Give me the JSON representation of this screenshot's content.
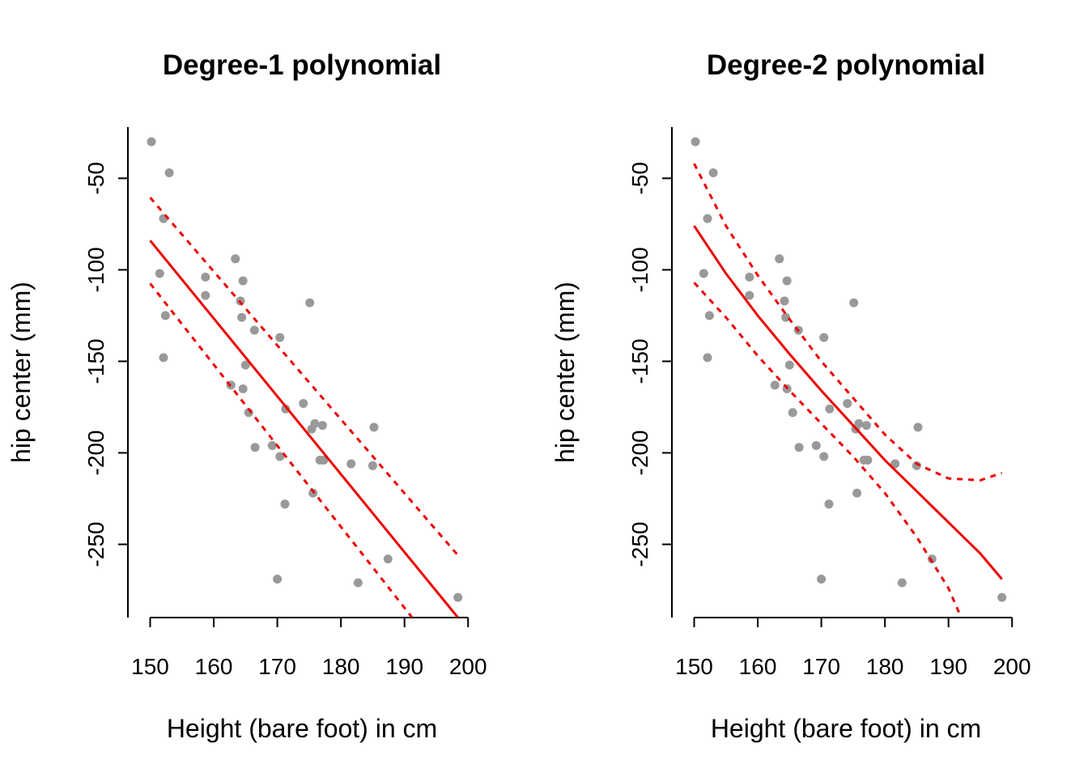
{
  "colors": {
    "points": "#999999",
    "fit": "#ee0000",
    "axis": "#000000",
    "background": "#ffffff"
  },
  "chart_data": [
    {
      "type": "scatter",
      "title": "Degree-1 polynomial",
      "xlabel": "Height (bare foot) in cm",
      "ylabel": "hip center (mm)",
      "xlim": [
        146.5,
        201.5
      ],
      "ylim": [
        -290,
        -22
      ],
      "xticks": [
        150,
        160,
        170,
        180,
        190,
        200
      ],
      "yticks": [
        -50,
        -100,
        -150,
        -200,
        -250
      ],
      "grid": false,
      "points": [
        [
          150.2,
          -30
        ],
        [
          153,
          -47
        ],
        [
          152.1,
          -72
        ],
        [
          151.5,
          -102
        ],
        [
          152.4,
          -125
        ],
        [
          152.1,
          -148
        ],
        [
          158.7,
          -104
        ],
        [
          158.7,
          -114
        ],
        [
          163.4,
          -94
        ],
        [
          164.2,
          -117
        ],
        [
          164.6,
          -106
        ],
        [
          164.4,
          -126
        ],
        [
          166.4,
          -133
        ],
        [
          170.4,
          -137
        ],
        [
          164.6,
          -165
        ],
        [
          165,
          -152
        ],
        [
          162.7,
          -163
        ],
        [
          165.5,
          -178
        ],
        [
          166.5,
          -197
        ],
        [
          169.2,
          -196
        ],
        [
          170.4,
          -202
        ],
        [
          171.2,
          -228
        ],
        [
          171.3,
          -176
        ],
        [
          174.1,
          -173
        ],
        [
          175.1,
          -118
        ],
        [
          175.4,
          -187
        ],
        [
          175.9,
          -184
        ],
        [
          176.7,
          -204
        ],
        [
          177.1,
          -185
        ],
        [
          177.3,
          -204
        ],
        [
          175.6,
          -222
        ],
        [
          181.6,
          -206
        ],
        [
          185,
          -207
        ],
        [
          185.2,
          -186
        ],
        [
          187.4,
          -258
        ],
        [
          182.7,
          -271
        ],
        [
          170,
          -269
        ],
        [
          198.4,
          -279
        ]
      ],
      "series": [
        {
          "name": "fit",
          "style": "solid",
          "x": [
            150,
            198.4
          ],
          "y": [
            -84,
            -290
          ]
        },
        {
          "name": "upper",
          "style": "dashed",
          "x": [
            150,
            198.4
          ],
          "y": [
            -60.5,
            -256
          ]
        },
        {
          "name": "lower",
          "style": "dashed",
          "x": [
            150,
            191.2
          ],
          "y": [
            -107.5,
            -290
          ]
        }
      ]
    },
    {
      "type": "scatter",
      "title": "Degree-2 polynomial",
      "xlabel": "Height (bare foot) in cm",
      "ylabel": "hip center (mm)",
      "xlim": [
        146.5,
        201.5
      ],
      "ylim": [
        -290,
        -22
      ],
      "xticks": [
        150,
        160,
        170,
        180,
        190,
        200
      ],
      "yticks": [
        -50,
        -100,
        -150,
        -200,
        -250
      ],
      "grid": false,
      "points": [
        [
          150.2,
          -30
        ],
        [
          153,
          -47
        ],
        [
          152.1,
          -72
        ],
        [
          151.5,
          -102
        ],
        [
          152.4,
          -125
        ],
        [
          152.1,
          -148
        ],
        [
          158.7,
          -104
        ],
        [
          158.7,
          -114
        ],
        [
          163.4,
          -94
        ],
        [
          164.2,
          -117
        ],
        [
          164.6,
          -106
        ],
        [
          164.4,
          -126
        ],
        [
          166.4,
          -133
        ],
        [
          170.4,
          -137
        ],
        [
          164.6,
          -165
        ],
        [
          165,
          -152
        ],
        [
          162.7,
          -163
        ],
        [
          165.5,
          -178
        ],
        [
          166.5,
          -197
        ],
        [
          169.2,
          -196
        ],
        [
          170.4,
          -202
        ],
        [
          171.2,
          -228
        ],
        [
          171.3,
          -176
        ],
        [
          174.1,
          -173
        ],
        [
          175.1,
          -118
        ],
        [
          175.4,
          -187
        ],
        [
          175.9,
          -184
        ],
        [
          176.7,
          -204
        ],
        [
          177.1,
          -185
        ],
        [
          177.3,
          -204
        ],
        [
          175.6,
          -222
        ],
        [
          181.6,
          -206
        ],
        [
          185,
          -207
        ],
        [
          185.2,
          -186
        ],
        [
          187.4,
          -258
        ],
        [
          182.7,
          -271
        ],
        [
          170,
          -269
        ],
        [
          198.4,
          -279
        ]
      ],
      "series": [
        {
          "name": "fit",
          "style": "solid",
          "x": [
            150,
            155,
            160,
            165,
            170,
            175,
            180,
            185,
            190,
            195,
            198.4
          ],
          "y": [
            -76,
            -102,
            -125,
            -146,
            -166,
            -185,
            -204,
            -221,
            -238,
            -255,
            -269
          ]
        },
        {
          "name": "upper",
          "style": "dashed",
          "x": [
            150,
            155,
            160,
            165,
            170,
            175,
            180,
            185,
            190,
            195,
            198.4
          ],
          "y": [
            -42,
            -76,
            -103,
            -127,
            -150,
            -170,
            -190,
            -206,
            -214,
            -215,
            -211
          ]
        },
        {
          "name": "lower",
          "style": "dashed",
          "x": [
            150,
            155,
            160,
            165,
            170,
            175,
            180,
            185,
            190,
            192
          ],
          "y": [
            -107,
            -126,
            -147,
            -166,
            -184,
            -202,
            -222,
            -246,
            -274,
            -290
          ]
        }
      ]
    }
  ]
}
